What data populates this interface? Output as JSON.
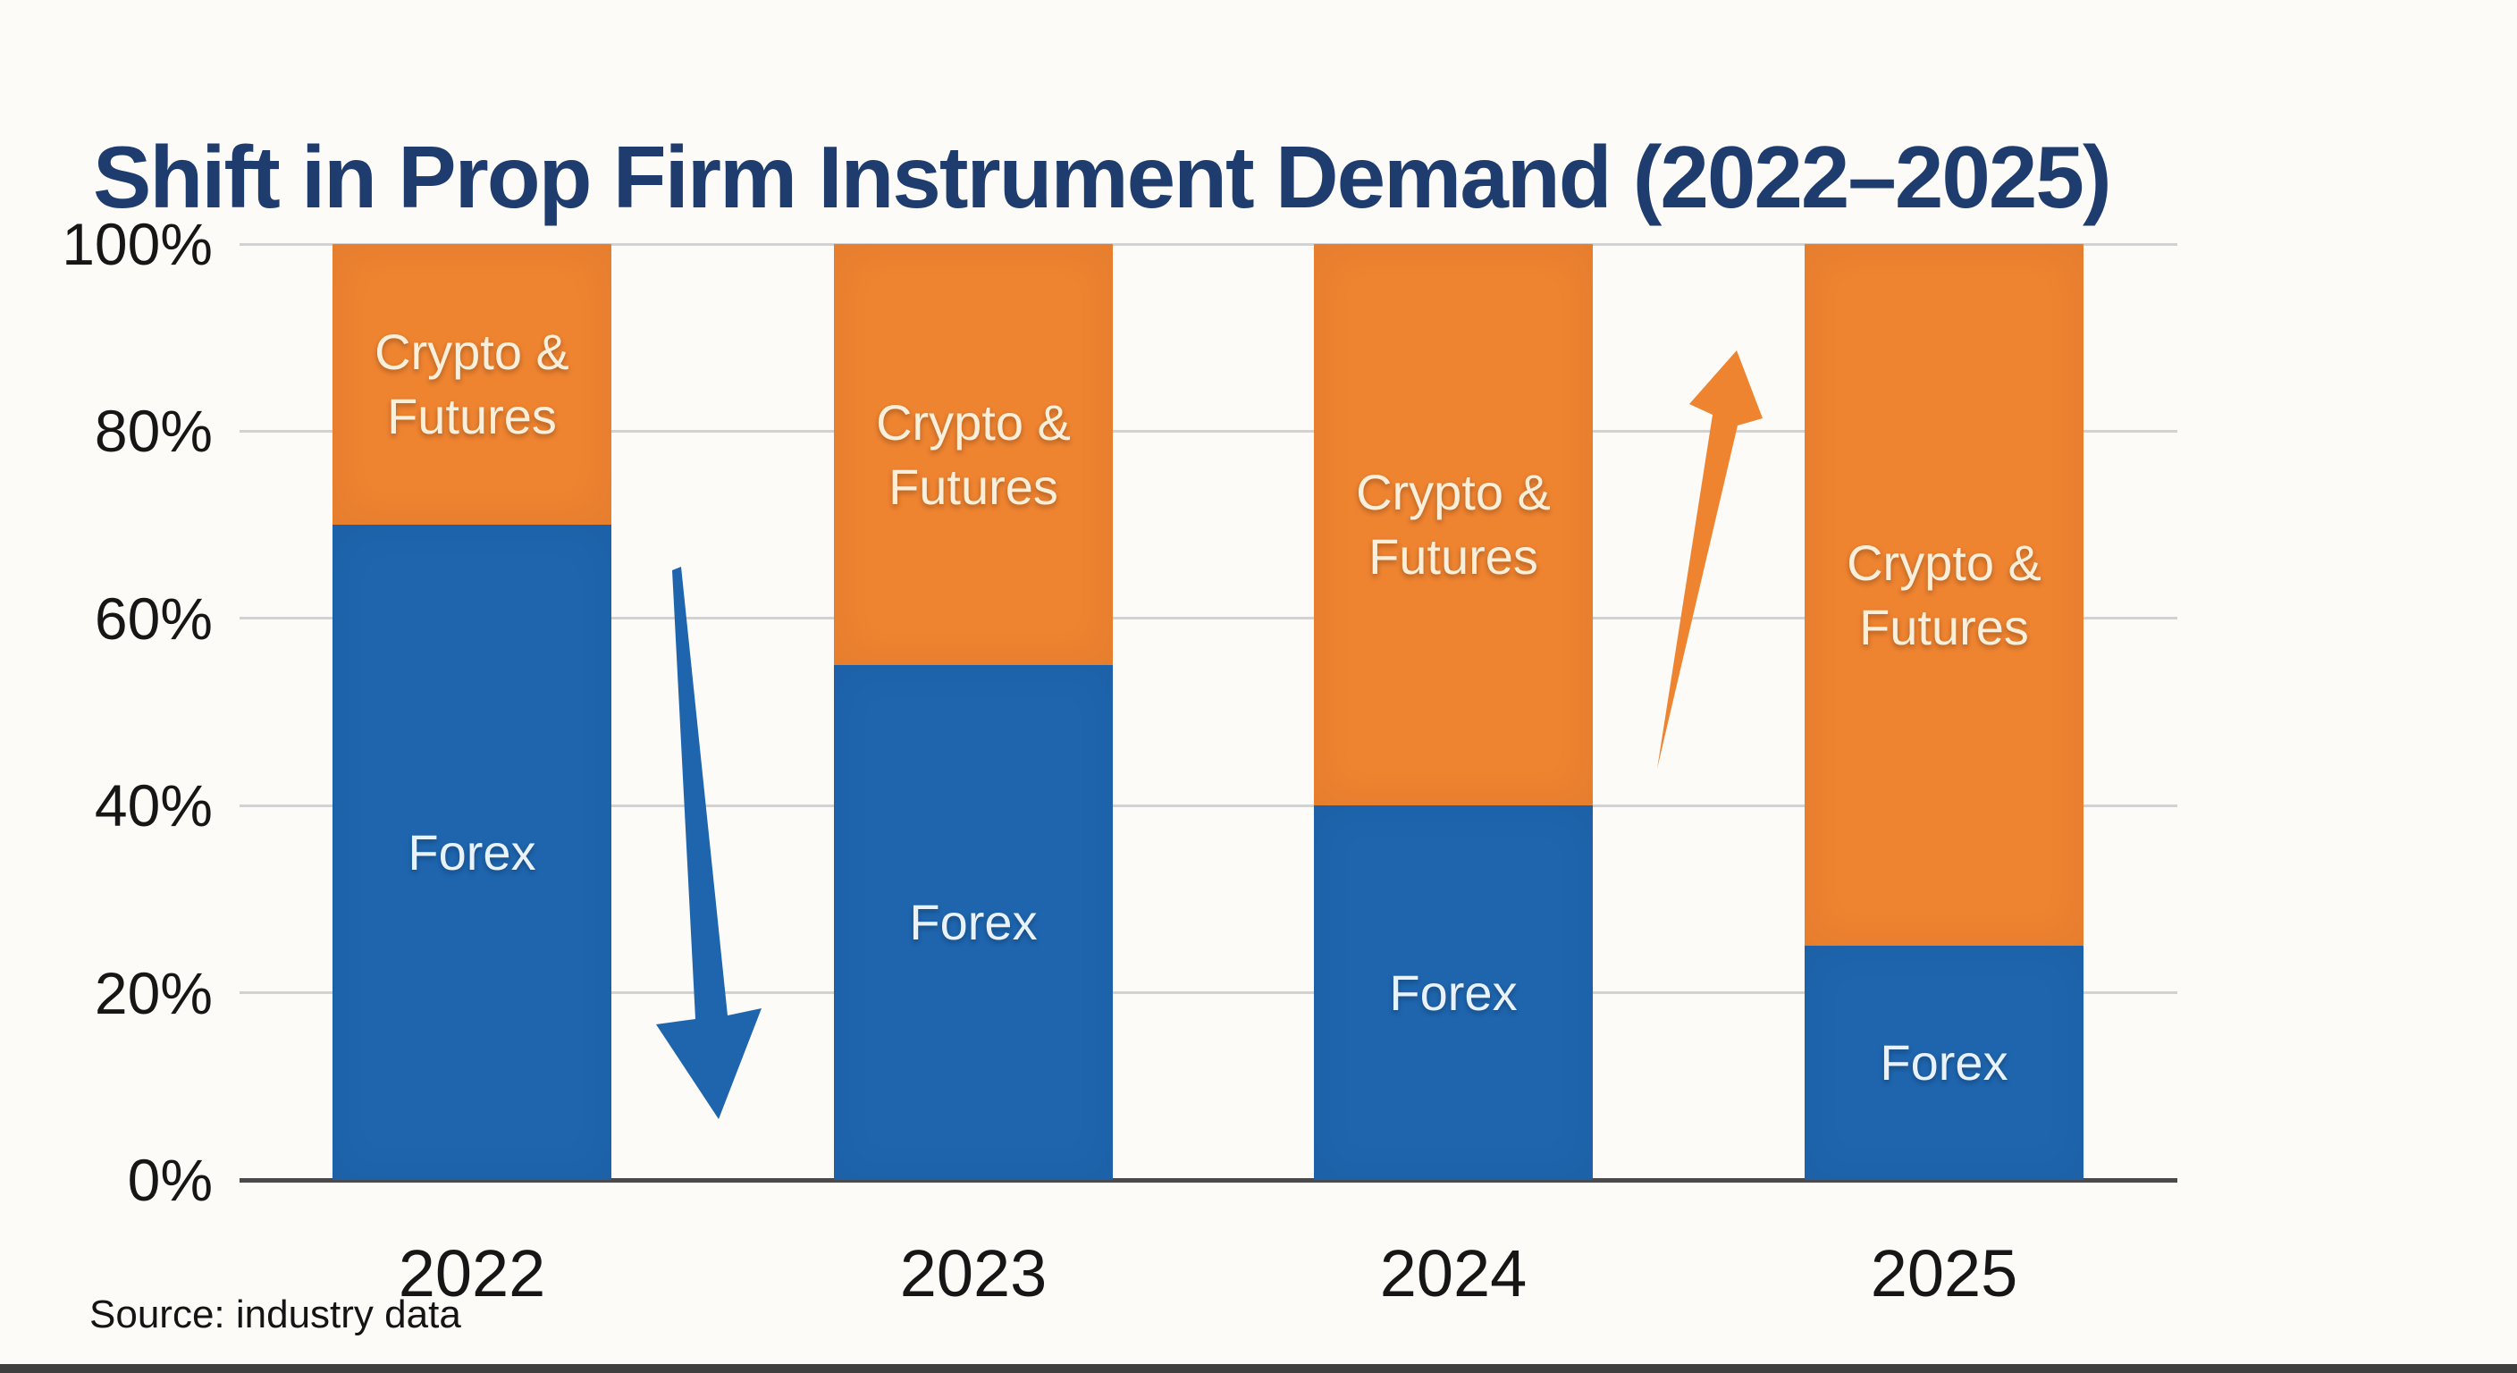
{
  "title": "Shift in Prop Firm Instrument Demand (2022–2025)",
  "source": "Source: industry data",
  "colors": {
    "forex": "#1E65AE",
    "crypto": "#EE8330",
    "title_text": "#1E3C6D",
    "background": "#FCFBF7",
    "gridline": "#D2D2D2",
    "axis_line": "#4A4A4A",
    "axis_text": "#161616",
    "crypto_label_text": "#F9EFDB",
    "forex_label_text": "#E9F1F9",
    "arrow_down": "#1E65AE",
    "arrow_up": "#EE8330"
  },
  "chart_data": {
    "type": "bar",
    "stacked": true,
    "unit": "%",
    "title": "Shift in Prop Firm Instrument Demand (2022–2025)",
    "categories": [
      "2022",
      "2023",
      "2024",
      "2025"
    ],
    "series": [
      {
        "name": "Forex",
        "values": [
          70,
          55,
          40,
          25
        ],
        "color_key": "forex",
        "label_color_key": "forex_label_text",
        "label_lines": [
          "Forex"
        ]
      },
      {
        "name": "Crypto & Futures",
        "values": [
          30,
          45,
          60,
          75
        ],
        "color_key": "crypto",
        "label_color_key": "crypto_label_text",
        "label_lines": [
          "Crypto &",
          "Futures"
        ]
      }
    ],
    "ylim": [
      0,
      100
    ],
    "yticks": [
      0,
      20,
      40,
      60,
      80,
      100
    ],
    "ytick_labels": [
      "0%",
      "20%",
      "40%",
      "60%",
      "80%",
      "100%"
    ],
    "xlabel": "",
    "ylabel": "",
    "grid": true,
    "legend_position": "none (series labeled inside bar segments)",
    "annotations": [
      {
        "type": "arrow",
        "direction": "down",
        "color_key": "arrow_down",
        "meaning": "Forex share declining",
        "between": [
          "2022",
          "2023"
        ]
      },
      {
        "type": "arrow",
        "direction": "up",
        "color_key": "arrow_up",
        "meaning": "Crypto & Futures share rising",
        "between": [
          "2024",
          "2025"
        ]
      }
    ]
  }
}
